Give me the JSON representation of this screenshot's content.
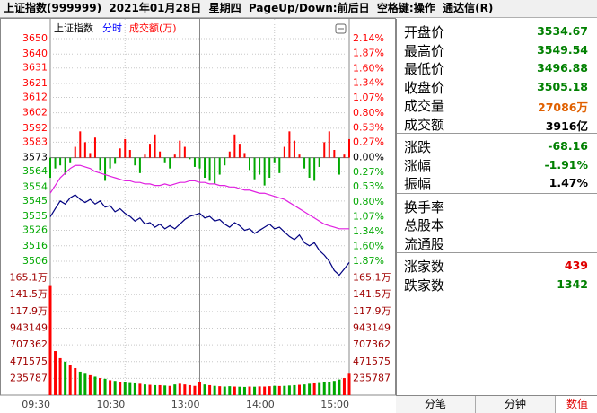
{
  "header": {
    "title": "上证指数(999999)  2021年01月28日  星期四  PageUp/Down:前后日  空格键:操作  通达信(R)"
  },
  "chart_data": [
    {
      "type": "line",
      "title": "上证指数",
      "ylim": [
        3506,
        3650
      ],
      "yticks": [
        3650,
        3640,
        3631,
        3621,
        3612,
        3602,
        3592,
        3583,
        3573,
        3564,
        3554,
        3545,
        3535,
        3526,
        3516,
        3506
      ],
      "y2lim": [
        -1.87,
        2.14
      ],
      "y2ticks": [
        {
          "value": 2.14,
          "label": "2.14%"
        },
        {
          "value": 1.87,
          "label": "1.87%"
        },
        {
          "value": 1.6,
          "label": "1.60%"
        },
        {
          "value": 1.34,
          "label": "1.34%"
        },
        {
          "value": 1.07,
          "label": "1.07%"
        },
        {
          "value": 0.8,
          "label": "0.80%"
        },
        {
          "value": 0.53,
          "label": "0.53%"
        },
        {
          "value": 0.27,
          "label": "0.27%"
        },
        {
          "value": 0,
          "label": "0.00%"
        },
        {
          "value": -0.27,
          "label": "0.27%"
        },
        {
          "value": -0.53,
          "label": "0.53%"
        },
        {
          "value": -0.8,
          "label": "0.80%"
        },
        {
          "value": -1.07,
          "label": "1.07%"
        },
        {
          "value": -1.34,
          "label": "1.34%"
        },
        {
          "value": -1.6,
          "label": "1.60%"
        },
        {
          "value": -1.87,
          "label": "1.87%"
        }
      ],
      "grid": true,
      "color_up": "#ff0000",
      "color_down": "#00a800",
      "series": [
        {
          "name": "分时",
          "color": "#000080",
          "values": [
            3534.7,
            3540,
            3545,
            3543,
            3547,
            3549,
            3546,
            3544,
            3546,
            3543,
            3545,
            3541,
            3542,
            3538,
            3540,
            3537,
            3535,
            3532,
            3534,
            3530,
            3531,
            3528,
            3530,
            3527,
            3529,
            3527,
            3530,
            3533,
            3535,
            3536,
            3537,
            3534,
            3535,
            3532,
            3533,
            3530,
            3528,
            3531,
            3529,
            3526,
            3527,
            3524,
            3526,
            3528,
            3530,
            3527,
            3528,
            3525,
            3522,
            3520,
            3523,
            3518,
            3516,
            3518,
            3513,
            3510,
            3506,
            3500,
            3497,
            3501,
            3505.2
          ]
        },
        {
          "color": "#e020e0",
          "values": [
            3550,
            3555,
            3560,
            3563,
            3566,
            3568,
            3568,
            3567,
            3566,
            3564,
            3563,
            3562,
            3561,
            3560,
            3559,
            3558,
            3558,
            3557,
            3557,
            3556,
            3556,
            3555,
            3555,
            3556,
            3555,
            3556,
            3557,
            3557,
            3558,
            3558,
            3557,
            3557,
            3556,
            3556,
            3555,
            3555,
            3554,
            3554,
            3553,
            3552,
            3552,
            3551,
            3550,
            3550,
            3549,
            3548,
            3547,
            3546,
            3544,
            3542,
            3540,
            3538,
            3536,
            3534,
            3532,
            3530,
            3529,
            3528,
            3527,
            3527,
            3527
          ]
        },
        {
          "type": "bar",
          "values": [
            3560,
            3566,
            3568,
            3562,
            3570,
            3580,
            3590,
            3583,
            3576,
            3586,
            3565,
            3558,
            3566,
            3569,
            3579,
            3585,
            3578,
            3568,
            3563,
            3575,
            3582,
            3588,
            3577,
            3570,
            3566,
            3575,
            3584,
            3580,
            3572,
            3567,
            3566,
            3560,
            3558,
            3556,
            3562,
            3568,
            3577,
            3588,
            3582,
            3576,
            3565,
            3559,
            3562,
            3555,
            3560,
            3570,
            3563,
            3580,
            3590,
            3584,
            3575,
            3566,
            3560,
            3558,
            3567,
            3583,
            3590,
            3578,
            3562,
            3575,
            3585
          ]
        }
      ]
    },
    {
      "type": "bar",
      "categories": [
        "09:30",
        null,
        null,
        null,
        null,
        null,
        null,
        null,
        null,
        null,
        null,
        null,
        null,
        null,
        null,
        "10:30",
        null,
        null,
        null,
        null,
        null,
        null,
        null,
        null,
        null,
        null,
        null,
        null,
        null,
        null,
        "13:00",
        null,
        null,
        null,
        null,
        null,
        null,
        null,
        null,
        null,
        null,
        null,
        null,
        null,
        null,
        "14:00",
        null,
        null,
        null,
        null,
        null,
        null,
        null,
        null,
        null,
        null,
        null,
        null,
        null,
        null,
        "15:00"
      ],
      "ylim": [
        0,
        1760000
      ],
      "yticks": [
        235787,
        471575,
        707362,
        943149,
        {
          "value": 1179000,
          "label": "117.9万"
        },
        {
          "value": 1415000,
          "label": "141.5万"
        },
        {
          "value": 1651000,
          "label": "165.1万"
        }
      ],
      "grid": true,
      "series": [
        {
          "name": "成交额(万)",
          "color": "#ff0000",
          "color_down": "#00a800",
          "values": [
            1550000,
            620000,
            520000,
            470000,
            420000,
            380000,
            330000,
            300000,
            280000,
            260000,
            240000,
            230000,
            210000,
            200000,
            190000,
            180000,
            170000,
            165000,
            160000,
            150000,
            145000,
            140000,
            140000,
            135000,
            130000,
            150000,
            160000,
            150000,
            140000,
            130000,
            180000,
            150000,
            140000,
            130000,
            125000,
            120000,
            125000,
            120000,
            118000,
            115000,
            120000,
            118000,
            122000,
            120000,
            125000,
            130000,
            128000,
            130000,
            135000,
            140000,
            145000,
            150000,
            160000,
            165000,
            170000,
            180000,
            190000,
            200000,
            220000,
            240000,
            300000
          ]
        }
      ]
    }
  ],
  "quote": {
    "groups": [
      {
        "rows": [
          {
            "label": "开盘价",
            "value": "3534.67"
          },
          {
            "label": "最高价",
            "value": "3549.54"
          },
          {
            "label": "最低价",
            "value": "3496.88"
          },
          {
            "label": "收盘价",
            "value": "3505.18"
          },
          {
            "label": "成交量",
            "value": "27086万"
          },
          {
            "label": "成交额",
            "value": "3916亿"
          }
        ]
      },
      {
        "rows": [
          {
            "label": "涨跌",
            "value": "-68.16"
          },
          {
            "label": "涨幅",
            "value": "-1.91%"
          },
          {
            "label": "振幅",
            "value": "1.47%"
          }
        ]
      },
      {
        "rows": [
          {
            "label": "换手率"
          },
          {
            "label": "总股本"
          },
          {
            "label": "流通股"
          }
        ]
      },
      {
        "rows": [
          {
            "label": "涨家数",
            "value": "439"
          },
          {
            "label": "跌家数",
            "value": "1342"
          }
        ]
      }
    ]
  },
  "tabs": [
    "分笔",
    "分钟",
    "数值"
  ]
}
